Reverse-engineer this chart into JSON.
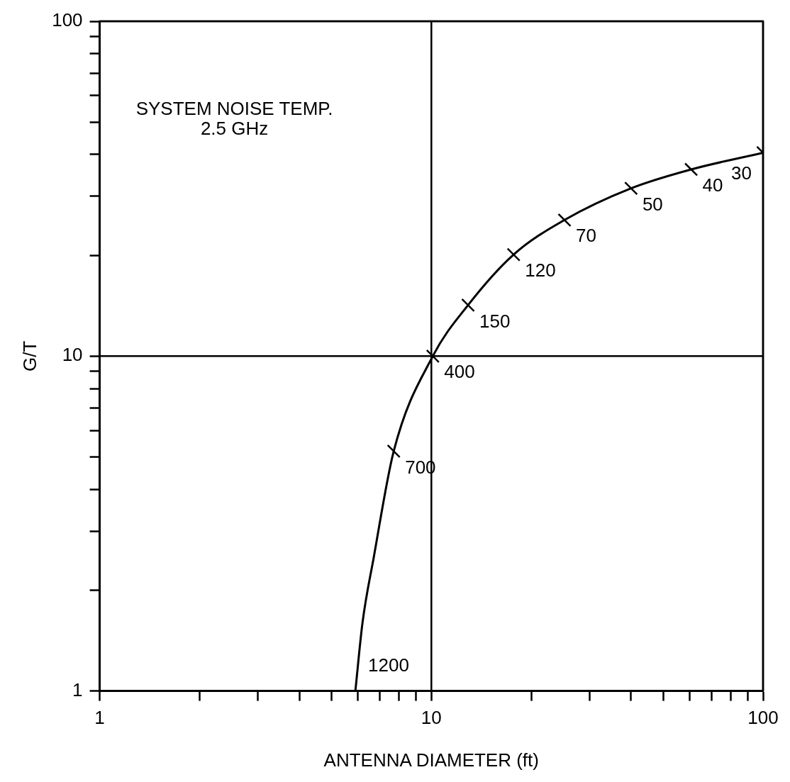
{
  "chart_data": {
    "type": "line",
    "xlabel": "ANTENNA DIAMETER (ft)",
    "ylabel": "G/T",
    "log": "xy",
    "grid": true,
    "legend": false,
    "line_style": "solid",
    "xlim": [
      1,
      100
    ],
    "ylim": [
      1,
      100
    ],
    "xticks": [
      1,
      {
        "value": 2,
        "label": null
      },
      {
        "value": 3,
        "label": null
      },
      {
        "value": 4,
        "label": null
      },
      {
        "value": 5,
        "label": null
      },
      {
        "value": 6,
        "label": null
      },
      {
        "value": 7,
        "label": null
      },
      {
        "value": 8,
        "label": null
      },
      {
        "value": 9,
        "label": null
      },
      10,
      {
        "value": 20,
        "label": null
      },
      {
        "value": 30,
        "label": null
      },
      {
        "value": 40,
        "label": null
      },
      {
        "value": 50,
        "label": null
      },
      {
        "value": 60,
        "label": null
      },
      {
        "value": 70,
        "label": null
      },
      {
        "value": 80,
        "label": null
      },
      {
        "value": 90,
        "label": null
      },
      100
    ],
    "yticks": [
      1,
      {
        "value": 2,
        "label": null
      },
      {
        "value": 3,
        "label": null
      },
      {
        "value": 4,
        "label": null
      },
      {
        "value": 5,
        "label": null
      },
      {
        "value": 6,
        "label": null
      },
      {
        "value": 7,
        "label": null
      },
      {
        "value": 8,
        "label": null
      },
      {
        "value": 9,
        "label": null
      },
      10,
      {
        "value": 20,
        "label": null
      },
      {
        "value": 30,
        "label": null
      },
      {
        "value": 40,
        "label": null
      },
      {
        "value": 50,
        "label": null
      },
      {
        "value": 60,
        "label": null
      },
      {
        "value": 70,
        "label": null
      },
      {
        "value": 80,
        "label": null
      },
      {
        "value": 90,
        "label": null
      },
      100
    ],
    "series": [
      {
        "color": "#000000",
        "x": [
          5.9,
          6.2,
          6.7,
          7.7,
          10.1,
          12.9,
          17.7,
          25.2,
          40,
          60.7,
          100
        ],
        "values": [
          1,
          1.6,
          2.5,
          5.2,
          10,
          14.2,
          20.1,
          25.5,
          31.7,
          36.1,
          40.5
        ]
      },
      {
        "type": "scatter",
        "marker": "cross",
        "color": "#000000",
        "x": [
          7.7,
          10.1,
          12.9,
          17.7,
          25.2,
          40,
          60.7,
          100
        ],
        "values": [
          5.2,
          10,
          14.2,
          20.1,
          25.5,
          31.7,
          36.1,
          40.5
        ]
      }
    ],
    "annotations": [
      "SYSTEM NOISE TEMP.",
      "2.5 GHz",
      {
        "text": "1200",
        "x": 5.9,
        "y": 1
      },
      {
        "text": "700",
        "x": 7.7,
        "y": 5.2
      },
      {
        "text": "400",
        "x": 10.1,
        "y": 10
      },
      {
        "text": "150",
        "x": 12.9,
        "y": 14.2
      },
      {
        "text": "120",
        "x": 17.7,
        "y": 20.1
      },
      {
        "text": "70",
        "x": 25.2,
        "y": 25.5
      },
      {
        "text": "50",
        "x": 40,
        "y": 31.7
      },
      {
        "text": "40",
        "x": 60.7,
        "y": 36.1
      },
      {
        "text": "30",
        "x": 100,
        "y": 40.5
      }
    ]
  }
}
